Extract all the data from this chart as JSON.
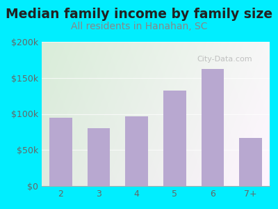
{
  "title": "Median family income by family size",
  "subtitle": "All residents in Hanahan, SC",
  "categories": [
    "2",
    "3",
    "4",
    "5",
    "6",
    "7+"
  ],
  "values": [
    95000,
    80000,
    97000,
    132000,
    162000,
    67000
  ],
  "bar_color": "#b8a8d0",
  "background_outer": "#00eeff",
  "title_color": "#222222",
  "subtitle_color": "#888888",
  "tick_color": "#666666",
  "ylim": [
    0,
    200000
  ],
  "yticks": [
    0,
    50000,
    100000,
    150000,
    200000
  ],
  "ytick_labels": [
    "$0",
    "$50k",
    "$100k",
    "$150k",
    "$200k"
  ],
  "watermark": "City-Data.com",
  "title_fontsize": 13.5,
  "subtitle_fontsize": 10,
  "tick_fontsize": 9
}
